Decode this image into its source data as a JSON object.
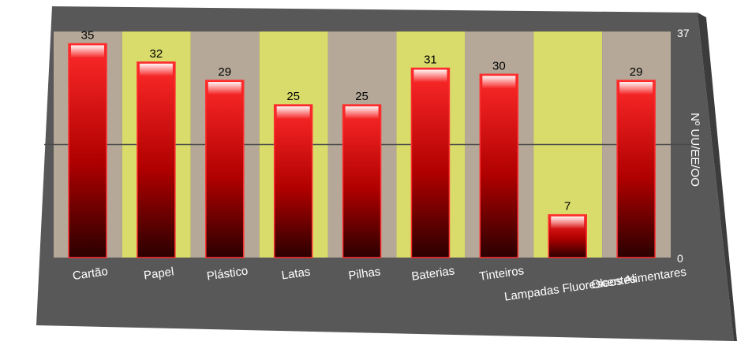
{
  "chart_data": {
    "type": "bar",
    "categories": [
      "Cartão",
      "Papel",
      "Plástico",
      "Latas",
      "Pilhas",
      "Baterias",
      "Tinteiros",
      "Lampadas Fluorescentes",
      "Oleos Alimentares"
    ],
    "values": [
      35,
      32,
      29,
      25,
      25,
      31,
      30,
      7,
      29
    ],
    "ylabel": "Nº UU/EE/OO",
    "ylim": [
      0,
      37
    ],
    "y_tick_labels": [
      "0",
      "37"
    ],
    "grid": true,
    "bar_color": "#e00000",
    "band_colors": [
      "#b5a898",
      "#d9dc6a"
    ],
    "background_color": "#585858"
  }
}
